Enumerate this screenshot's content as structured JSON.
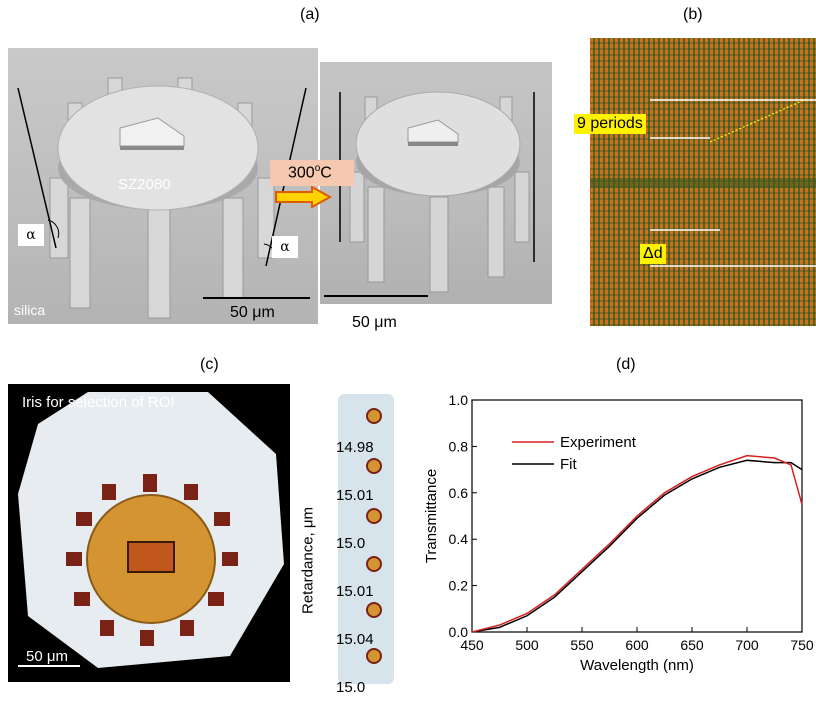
{
  "panels": {
    "a": {
      "label": "(a)",
      "material": "SZ2080",
      "substrate": "silica",
      "angle_symbol": "α",
      "arrow_text": "300",
      "arrow_text_sup": "o",
      "arrow_text_unit": "C",
      "scale_left": "50 μm",
      "scale_right": "50 μm"
    },
    "b": {
      "label": "(b)",
      "periods": "9 periods",
      "delta_d": "Δd"
    },
    "c": {
      "label": "(c)",
      "iris_text": "Iris for selection of ROI",
      "scale": "50 μm",
      "retardance_axis": "Retardance, μm",
      "retardance_values": [
        "14.98",
        "15.01",
        "15.0",
        "15.01",
        "15.04",
        "15.0"
      ]
    },
    "d": {
      "label": "(d)"
    }
  },
  "chart_data": {
    "type": "line",
    "xlabel": "Wavelength (nm)",
    "ylabel": "Transmittance",
    "xlim": [
      450,
      750
    ],
    "ylim": [
      0.0,
      1.0
    ],
    "xticks": [
      "450",
      "500",
      "550",
      "600",
      "650",
      "700",
      "750"
    ],
    "yticks": [
      "0.0",
      "0.2",
      "0.4",
      "0.6",
      "0.8",
      "1.0"
    ],
    "legend": "top-left",
    "series": [
      {
        "name": "Experiment",
        "color": "#d62020",
        "x": [
          450,
          475,
          500,
          525,
          550,
          575,
          600,
          625,
          650,
          675,
          700,
          725,
          740,
          750
        ],
        "y": [
          0.0,
          0.03,
          0.08,
          0.16,
          0.27,
          0.38,
          0.5,
          0.6,
          0.67,
          0.72,
          0.76,
          0.75,
          0.72,
          0.55
        ]
      },
      {
        "name": "Fit",
        "color": "#000000",
        "x": [
          450,
          475,
          500,
          525,
          550,
          575,
          600,
          625,
          650,
          675,
          700,
          725,
          740,
          750
        ],
        "y": [
          0.0,
          0.02,
          0.07,
          0.15,
          0.26,
          0.37,
          0.49,
          0.59,
          0.66,
          0.71,
          0.74,
          0.73,
          0.73,
          0.7
        ]
      }
    ]
  }
}
